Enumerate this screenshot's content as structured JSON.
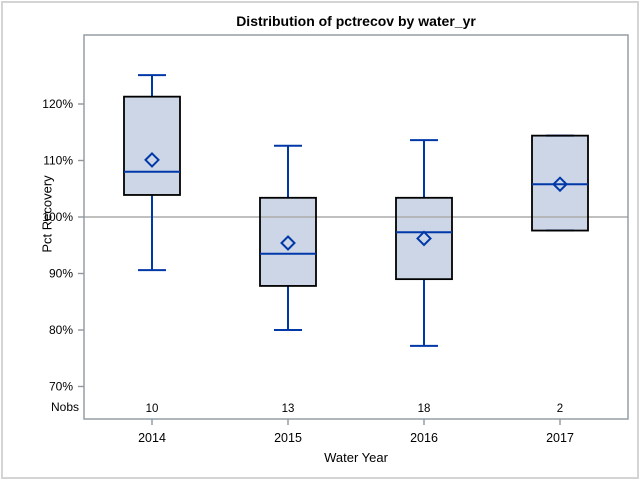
{
  "figure": {
    "background": "#ffffff",
    "outer_border_color": "#d4d4d4"
  },
  "chart_data": {
    "type": "box",
    "title": "Distribution of pctrecov by water_yr",
    "xlabel": "Water Year",
    "ylabel": "Pct Recovery",
    "nobs_label": "Nobs",
    "categories": [
      "2014",
      "2015",
      "2016",
      "2017"
    ],
    "yticks": [
      {
        "value": 70,
        "label": "70%"
      },
      {
        "value": 80,
        "label": "80%"
      },
      {
        "value": 90,
        "label": "90%"
      },
      {
        "value": 100,
        "label": "100%"
      },
      {
        "value": 110,
        "label": "110%"
      },
      {
        "value": 120,
        "label": "120%"
      }
    ],
    "ylim": [
      64,
      132
    ],
    "reference_line_y": 100,
    "grid": false,
    "legend_position": "none",
    "series": [
      {
        "category": "2014",
        "nobs": "10",
        "whisker_low": 90.6,
        "q1": 103.9,
        "median": 108.0,
        "mean": 110.1,
        "q3": 121.3,
        "whisker_high": 125.1
      },
      {
        "category": "2015",
        "nobs": "13",
        "whisker_low": 80.0,
        "q1": 87.8,
        "median": 93.5,
        "mean": 95.4,
        "q3": 103.4,
        "whisker_high": 112.6
      },
      {
        "category": "2016",
        "nobs": "18",
        "whisker_low": 77.2,
        "q1": 89.0,
        "median": 97.3,
        "mean": 96.2,
        "q3": 103.4,
        "whisker_high": 113.6
      },
      {
        "category": "2017",
        "nobs": "2",
        "whisker_low": 97.6,
        "q1": 97.6,
        "median": 105.8,
        "mean": 105.8,
        "q3": 114.4,
        "whisker_high": 114.4
      }
    ],
    "colors": {
      "box_fill": "#ccd6e6",
      "box_border": "#000000",
      "whisker": "#0038a8",
      "median": "#0038a8",
      "mean_marker": "#0038a8",
      "axis_frame": "#8f989f",
      "tick": "#8f989f",
      "reference_line": "#ababab",
      "text": "#000000"
    }
  }
}
